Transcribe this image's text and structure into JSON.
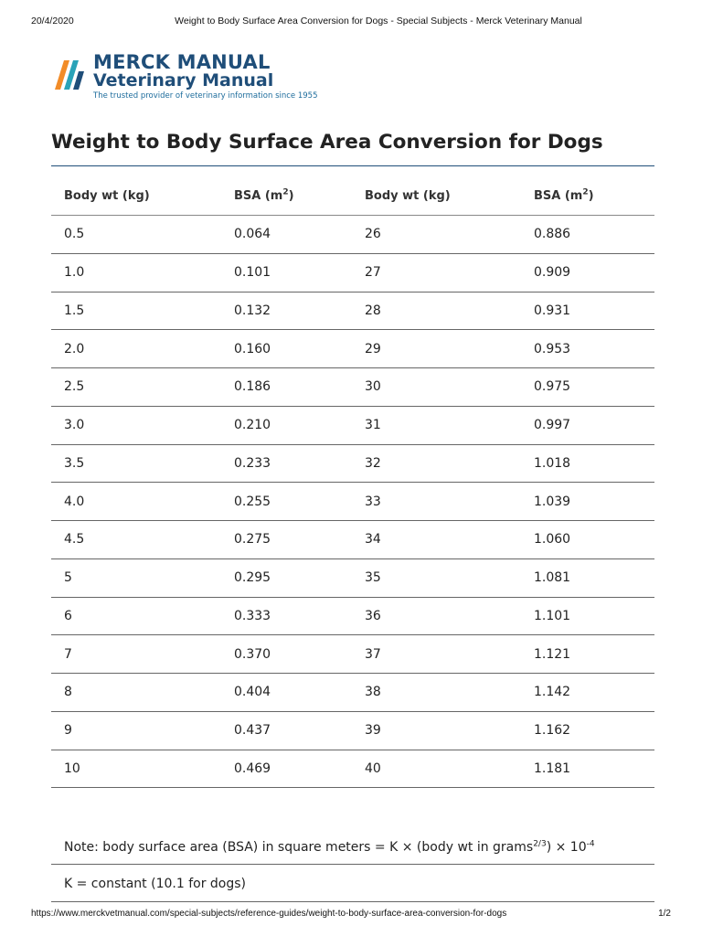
{
  "print_header": {
    "date": "20/4/2020",
    "title": "Weight to Body Surface Area Conversion for Dogs - Special Subjects - Merck Veterinary Manual"
  },
  "logo": {
    "line1": "MERCK MANUAL",
    "line2": "Veterinary Manual",
    "tagline": "The trusted provider of veterinary information since 1955"
  },
  "page_title": "Weight to Body Surface Area Conversion for Dogs",
  "table": {
    "headers": {
      "wt1": "Body wt (kg)",
      "bsa1_prefix": "BSA (m",
      "bsa1_sup": "2",
      "bsa1_suffix": ")",
      "wt2": "Body wt (kg)",
      "bsa2_prefix": "BSA (m",
      "bsa2_sup": "2",
      "bsa2_suffix": ")"
    },
    "rows": [
      [
        "0.5",
        "0.064",
        "26",
        "0.886"
      ],
      [
        "1.0",
        "0.101",
        "27",
        "0.909"
      ],
      [
        "1.5",
        "0.132",
        "28",
        "0.931"
      ],
      [
        "2.0",
        "0.160",
        "29",
        "0.953"
      ],
      [
        "2.5",
        "0.186",
        "30",
        "0.975"
      ],
      [
        "3.0",
        "0.210",
        "31",
        "0.997"
      ],
      [
        "3.5",
        "0.233",
        "32",
        "1.018"
      ],
      [
        "4.0",
        "0.255",
        "33",
        "1.039"
      ],
      [
        "4.5",
        "0.275",
        "34",
        "1.060"
      ],
      [
        "5",
        "0.295",
        "35",
        "1.081"
      ],
      [
        "6",
        "0.333",
        "36",
        "1.101"
      ],
      [
        "7",
        "0.370",
        "37",
        "1.121"
      ],
      [
        "8",
        "0.404",
        "38",
        "1.142"
      ],
      [
        "9",
        "0.437",
        "39",
        "1.162"
      ],
      [
        "10",
        "0.469",
        "40",
        "1.181"
      ]
    ]
  },
  "note": {
    "text_before": "Note: body surface area (BSA) in square meters = K × (body wt in grams",
    "exponent": "2/3",
    "text_after": ") × 10",
    "power": "-4"
  },
  "constant": "K = constant (10.1 for dogs)",
  "print_footer": {
    "url": "https://www.merckvetmanual.com/special-subjects/reference-guides/weight-to-body-surface-area-conversion-for-dogs",
    "page": "1/2"
  },
  "colors": {
    "brand": "#1f4e79",
    "logo_orange": "#f28c28",
    "logo_teal": "#2aa3b8"
  }
}
